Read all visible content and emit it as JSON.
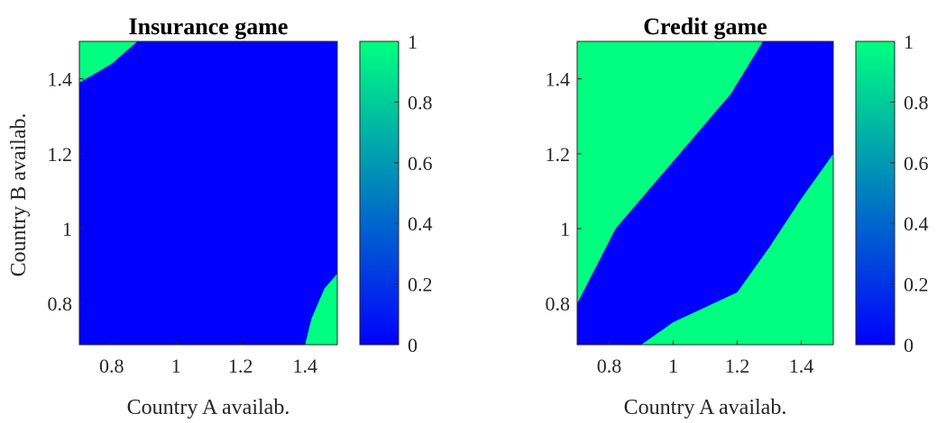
{
  "colors": {
    "zero": "#0000ff",
    "one": "#00ff80",
    "axis": "#262626"
  },
  "chart_data": [
    {
      "type": "heatmap",
      "title": "Insurance game",
      "xlabel": "Country A availab.",
      "ylabel": "Country B availab.",
      "xlim": [
        0.7,
        1.5
      ],
      "ylim": [
        0.69,
        1.5
      ],
      "xticks": [
        "0.8",
        "1",
        "1.2",
        "1.4"
      ],
      "yticks": [
        "0.8",
        "1",
        "1.2",
        "1.4"
      ],
      "value_outside_regions": 0,
      "regions_value_1": [
        {
          "name": "top-left corner",
          "polygon": [
            [
              0.7,
              1.39
            ],
            [
              0.7,
              1.5
            ],
            [
              0.88,
              1.5
            ],
            [
              0.8,
              1.44
            ],
            [
              0.74,
              1.41
            ]
          ]
        },
        {
          "name": "bottom-right corner",
          "polygon": [
            [
              1.5,
              0.69
            ],
            [
              1.5,
              0.88
            ],
            [
              1.46,
              0.84
            ],
            [
              1.42,
              0.76
            ],
            [
              1.4,
              0.69
            ]
          ]
        }
      ],
      "colorbar": {
        "min": 0,
        "max": 1,
        "ticks": [
          "0",
          "0.2",
          "0.4",
          "0.6",
          "0.8",
          "1"
        ],
        "colors": [
          "#0000ff",
          "#00ff80"
        ]
      }
    },
    {
      "type": "heatmap",
      "title": "Credit game",
      "xlabel": "Country A availab.",
      "ylabel": "",
      "xlim": [
        0.7,
        1.5
      ],
      "ylim": [
        0.69,
        1.5
      ],
      "xticks": [
        "0.8",
        "1",
        "1.2",
        "1.4"
      ],
      "yticks": [
        "0.8",
        "1",
        "1.2",
        "1.4"
      ],
      "value_outside_regions": 1,
      "regions_value_0": [
        {
          "name": "diagonal band",
          "polygon": [
            [
              0.7,
              0.69
            ],
            [
              0.7,
              0.8
            ],
            [
              0.82,
              1.0
            ],
            [
              1.0,
              1.18
            ],
            [
              1.18,
              1.36
            ],
            [
              1.28,
              1.5
            ],
            [
              1.5,
              1.5
            ],
            [
              1.5,
              1.2
            ],
            [
              1.4,
              1.08
            ],
            [
              1.3,
              0.95
            ],
            [
              1.2,
              0.83
            ],
            [
              1.0,
              0.75
            ],
            [
              0.9,
              0.69
            ]
          ]
        }
      ],
      "colorbar": {
        "min": 0,
        "max": 1,
        "ticks": [
          "0",
          "0.2",
          "0.4",
          "0.6",
          "0.8",
          "1"
        ],
        "colors": [
          "#0000ff",
          "#00ff80"
        ]
      }
    }
  ]
}
